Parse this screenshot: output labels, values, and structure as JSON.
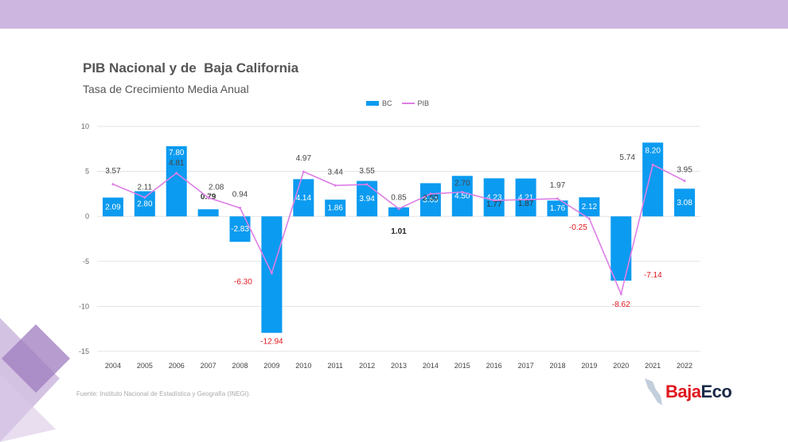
{
  "title": "PIB Nacional y de  Baja California",
  "subtitle": "Tasa de Crecimiento Media Anual",
  "source": "Fuente: Instituto Nacional de Estadística y Geografía (INEGI).",
  "logo": {
    "part1": "Baja",
    "part2": "Eco"
  },
  "colors": {
    "bar": "#0b9bf0",
    "line": "#dd7ee6",
    "negative_label": "#e0161e",
    "band": "#cdb6df"
  },
  "chart_data": {
    "type": "bar",
    "title": "PIB Nacional y de  Baja California",
    "subtitle": "Tasa de Crecimiento Media Anual",
    "categories": [
      "2004",
      "2005",
      "2006",
      "2007",
      "2008",
      "2009",
      "2010",
      "2011",
      "2012",
      "2013",
      "2014",
      "2015",
      "2016",
      "2017",
      "2018",
      "2019",
      "2020",
      "2021",
      "2022"
    ],
    "ylim": [
      -15,
      10
    ],
    "yticks": [
      10,
      5,
      0,
      -5,
      -10,
      -15
    ],
    "grid": true,
    "legend": "top-center",
    "series": [
      {
        "name": "BC",
        "type": "bar",
        "values": [
          2.09,
          2.8,
          7.8,
          0.79,
          -2.83,
          -12.94,
          4.14,
          1.86,
          3.94,
          1.01,
          3.69,
          4.5,
          4.23,
          4.21,
          1.76,
          2.12,
          -7.14,
          8.2,
          3.08
        ]
      },
      {
        "name": "PIB",
        "type": "line",
        "values": [
          3.57,
          2.11,
          4.81,
          2.08,
          0.94,
          -6.3,
          4.97,
          3.44,
          3.55,
          0.85,
          2.5,
          2.7,
          1.77,
          1.87,
          1.97,
          -0.25,
          -8.62,
          5.74,
          3.95
        ]
      }
    ]
  }
}
